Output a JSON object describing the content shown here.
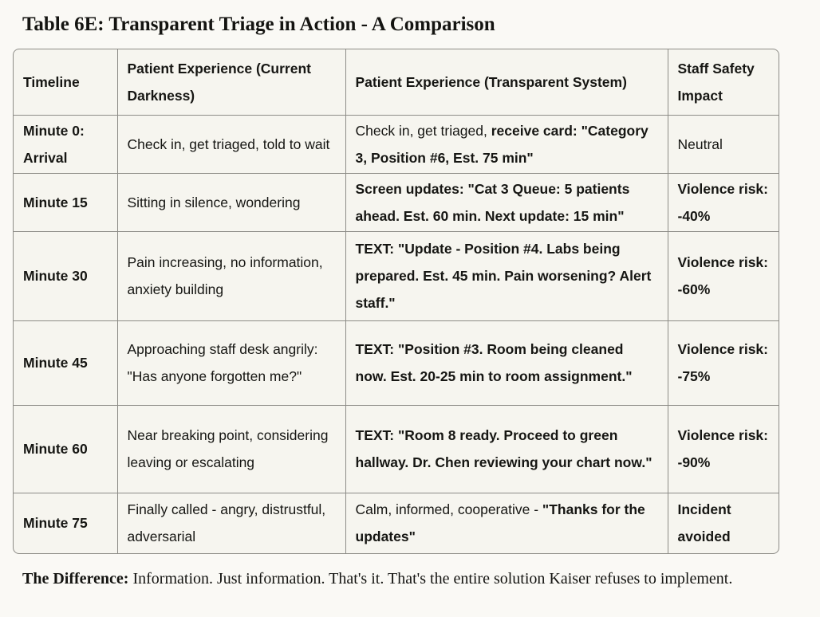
{
  "title": "Table 6E: Transparent Triage in Action - A Comparison",
  "table": {
    "columns": [
      {
        "label": "Timeline"
      },
      {
        "label": "Patient Experience (Current Darkness)"
      },
      {
        "label": "Patient Experience (Transparent System)"
      },
      {
        "label": "Staff Safety Impact"
      }
    ],
    "rows": [
      {
        "cells": [
          [
            {
              "text": "Minute 0: Arrival",
              "bold": true
            }
          ],
          [
            {
              "text": "Check in, get triaged, told to wait",
              "bold": false
            }
          ],
          [
            {
              "text": "Check in, get triaged, ",
              "bold": false
            },
            {
              "text": "receive card: \"Category 3, Position #6, Est. 75 min\"",
              "bold": true
            }
          ],
          [
            {
              "text": "Neutral",
              "bold": false
            }
          ]
        ]
      },
      {
        "cells": [
          [
            {
              "text": "Minute 15",
              "bold": true
            }
          ],
          [
            {
              "text": "Sitting in silence, wondering",
              "bold": false
            }
          ],
          [
            {
              "text": "Screen updates: \"Cat 3 Queue: 5 patients ahead. Est. 60 min. Next update: 15 min\"",
              "bold": true
            }
          ],
          [
            {
              "text": "Violence risk: -40%",
              "bold": true
            }
          ]
        ]
      },
      {
        "cells": [
          [
            {
              "text": "Minute 30",
              "bold": true
            }
          ],
          [
            {
              "text": "Pain increasing, no information, anxiety building",
              "bold": false
            }
          ],
          [
            {
              "text": "TEXT: \"Update - Position #4. Labs being prepared. Est. 45 min. Pain worsening? Alert staff.\"",
              "bold": true
            }
          ],
          [
            {
              "text": "Violence risk: -60%",
              "bold": true
            }
          ]
        ]
      },
      {
        "cells": [
          [
            {
              "text": "Minute 45",
              "bold": true
            }
          ],
          [
            {
              "text": "Approaching staff desk angrily: \"Has anyone forgotten me?\"",
              "bold": false
            }
          ],
          [
            {
              "text": "TEXT: \"Position #3. Room being cleaned now. Est. 20-25 min to room assignment.\"",
              "bold": true
            }
          ],
          [
            {
              "text": "Violence risk: -75%",
              "bold": true
            }
          ]
        ]
      },
      {
        "cells": [
          [
            {
              "text": "Minute 60",
              "bold": true
            }
          ],
          [
            {
              "text": "Near breaking point, considering leaving or escalating",
              "bold": false
            }
          ],
          [
            {
              "text": "TEXT: \"Room 8 ready. Proceed to green hallway. Dr. Chen reviewing your chart now.\"",
              "bold": true
            }
          ],
          [
            {
              "text": "Violence risk: -90%",
              "bold": true
            }
          ]
        ]
      },
      {
        "cells": [
          [
            {
              "text": "Minute 75",
              "bold": true
            }
          ],
          [
            {
              "text": "Finally called - angry, distrustful, adversarial",
              "bold": false
            }
          ],
          [
            {
              "text": "Calm, informed, cooperative - ",
              "bold": false
            },
            {
              "text": "\"Thanks for the updates\"",
              "bold": true
            }
          ],
          [
            {
              "text": "Incident avoided",
              "bold": true
            }
          ]
        ]
      }
    ]
  },
  "footer": {
    "label": "The Difference:",
    "text": " Information. Just information. That's it. That's the entire solution Kaiser refuses to implement."
  },
  "colors": {
    "page_background": "#faf9f5",
    "table_background": "#f6f5ef",
    "table_border": "#8d8c87",
    "text": "#161613"
  }
}
